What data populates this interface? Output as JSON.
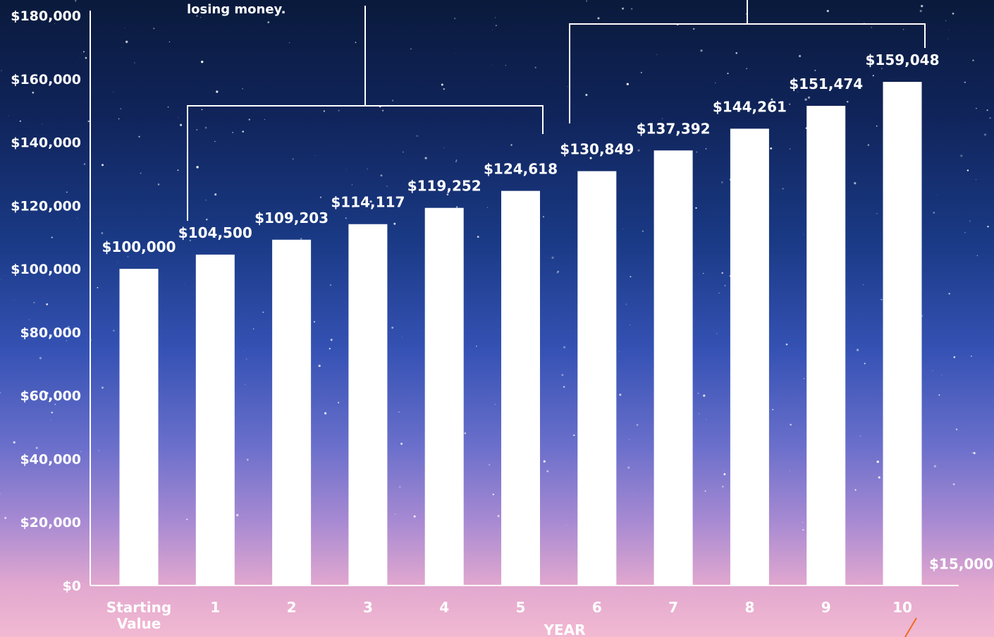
{
  "chart_data": {
    "type": "bar",
    "title": "",
    "xlabel": "YEAR",
    "ylabel": "",
    "ylim": [
      0,
      180000
    ],
    "yticks": [
      "$0",
      "$20,000",
      "$40,000",
      "$60,000",
      "$80,000",
      "$100,000",
      "$120,000",
      "$140,000",
      "$160,000",
      "$180,000"
    ],
    "categories": [
      "Starting Value",
      "1",
      "2",
      "3",
      "4",
      "5",
      "6",
      "7",
      "8",
      "9",
      "10"
    ],
    "series": [
      {
        "values": [
          100000,
          104500,
          109203,
          114117,
          119252,
          124618,
          130849,
          137392,
          144261,
          151474,
          159048
        ],
        "value_labels": [
          "$100,000",
          "$104,500",
          "$109,203",
          "$114,117",
          "$119,252",
          "$124,618",
          "$130,849",
          "$137,392",
          "$144,261",
          "$151,474",
          "$159,048"
        ],
        "color": "#ffffff"
      },
      {
        "values": [
          null,
          null,
          null,
          null,
          null,
          null,
          null,
          null,
          null,
          null,
          15000
        ],
        "value_labels": [
          "",
          "",
          "",
          "",
          "",
          "",
          "",
          "",
          "",
          "",
          "$15,000"
        ],
        "color": "#f06a1e"
      }
    ],
    "annotations": [
      "losing money."
    ],
    "grid": false
  }
}
